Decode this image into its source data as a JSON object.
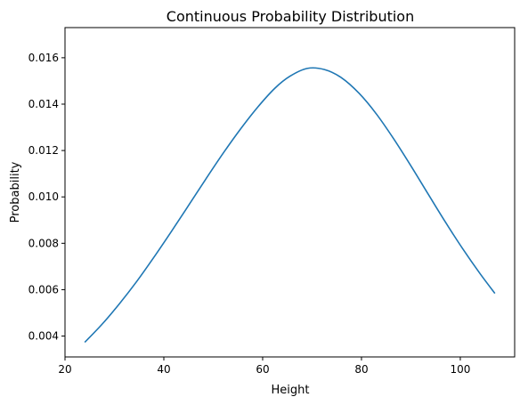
{
  "chart_data": {
    "type": "line",
    "title": "Continuous Probability Distribution",
    "xlabel": "Height",
    "ylabel": "Probability",
    "xlim": [
      20.0,
      111.0
    ],
    "ylim": [
      0.0031,
      0.0173
    ],
    "xticks": [
      {
        "value": 20,
        "label": "20"
      },
      {
        "value": 40,
        "label": "40"
      },
      {
        "value": 60,
        "label": "60"
      },
      {
        "value": 80,
        "label": "80"
      },
      {
        "value": 100,
        "label": "100"
      }
    ],
    "yticks": [
      {
        "value": 0.004,
        "label": "0.004"
      },
      {
        "value": 0.006,
        "label": "0.006"
      },
      {
        "value": 0.008,
        "label": "0.008"
      },
      {
        "value": 0.01,
        "label": "0.010"
      },
      {
        "value": 0.012,
        "label": "0.012"
      },
      {
        "value": 0.014,
        "label": "0.014"
      },
      {
        "value": 0.016,
        "label": "0.016"
      }
    ],
    "grid": false,
    "series": [
      {
        "color": "#1f77b4",
        "x": [
          24,
          27.5,
          31,
          34.5,
          38,
          41.5,
          45,
          48.5,
          52,
          55.5,
          59,
          62.5,
          65.5,
          69,
          72.5,
          76,
          79.5,
          83,
          86.5,
          90,
          93.5,
          97,
          100.5,
          104,
          107
        ],
        "y": [
          0.00373,
          0.00451,
          0.00539,
          0.00635,
          0.0074,
          0.0085,
          0.00963,
          0.01077,
          0.01188,
          0.01292,
          0.01387,
          0.01469,
          0.0152,
          0.01554,
          0.01549,
          0.01513,
          0.01447,
          0.01358,
          0.01251,
          0.01134,
          0.01012,
          0.00891,
          0.00776,
          0.00669,
          0.00584
        ]
      }
    ]
  }
}
